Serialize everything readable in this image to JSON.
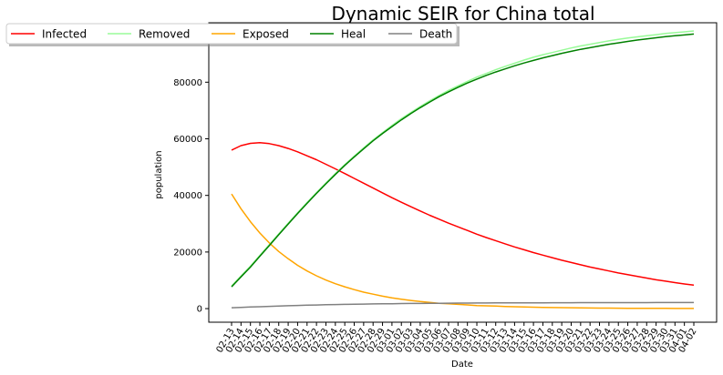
{
  "chart_data": {
    "type": "line",
    "title": "Dynamic SEIR for China total",
    "xlabel": "Date",
    "ylabel": "population",
    "ylim": [
      -4800,
      101000
    ],
    "yticks": [
      0,
      20000,
      40000,
      60000,
      80000
    ],
    "grid": false,
    "legend_position": "top-left",
    "x": [
      "02-13",
      "02-14",
      "02-15",
      "02-16",
      "02-17",
      "02-18",
      "02-19",
      "02-20",
      "02-21",
      "02-22",
      "02-23",
      "02-24",
      "02-25",
      "02-26",
      "02-27",
      "02-28",
      "02-29",
      "03-01",
      "03-02",
      "03-03",
      "03-04",
      "03-05",
      "03-06",
      "03-07",
      "03-08",
      "03-09",
      "03-10",
      "03-11",
      "03-12",
      "03-13",
      "03-14",
      "03-15",
      "03-16",
      "03-17",
      "03-18",
      "03-19",
      "03-20",
      "03-21",
      "03-22",
      "03-23",
      "03-24",
      "03-25",
      "03-26",
      "03-27",
      "03-28",
      "03-29",
      "03-30",
      "03-31",
      "04-01",
      "04-02"
    ],
    "series": [
      {
        "name": "Infected",
        "color": "#ff0000",
        "values": [
          56000,
          57600,
          58400,
          58600,
          58300,
          57600,
          56600,
          55400,
          54000,
          52600,
          51000,
          49400,
          47700,
          46000,
          44300,
          42600,
          40900,
          39200,
          37600,
          36000,
          34500,
          33000,
          31600,
          30200,
          28900,
          27600,
          26300,
          25100,
          24000,
          22900,
          21800,
          20800,
          19800,
          18900,
          18000,
          17100,
          16300,
          15500,
          14700,
          14000,
          13300,
          12600,
          12000,
          11400,
          10800,
          10200,
          9700,
          9200,
          8700,
          8300
        ]
      },
      {
        "name": "Removed",
        "color": "#98fb98",
        "values": [
          8000,
          11500,
          15000,
          18800,
          22600,
          26400,
          30200,
          33900,
          37500,
          41000,
          44400,
          47700,
          50900,
          53900,
          56800,
          59600,
          62200,
          64700,
          67100,
          69300,
          71400,
          73400,
          75300,
          77100,
          78700,
          80300,
          81800,
          83100,
          84400,
          85600,
          86700,
          87800,
          88800,
          89700,
          90500,
          91300,
          92100,
          92800,
          93400,
          94000,
          94600,
          95100,
          95600,
          96000,
          96400,
          96800,
          97200,
          97500,
          97800,
          98100
        ]
      },
      {
        "name": "Exposed",
        "color": "#ffa500",
        "values": [
          40500,
          35300,
          30700,
          26700,
          23200,
          20200,
          17600,
          15300,
          13300,
          11600,
          10100,
          8800,
          7700,
          6700,
          5800,
          5100,
          4400,
          3800,
          3300,
          2900,
          2500,
          2200,
          1900,
          1700,
          1500,
          1300,
          1100,
          1000,
          880,
          770,
          670,
          580,
          510,
          440,
          390,
          340,
          300,
          260,
          230,
          200,
          170,
          150,
          130,
          120,
          100,
          90,
          80,
          70,
          60,
          50
        ]
      },
      {
        "name": "Heal",
        "color": "#008000",
        "values": [
          7700,
          11200,
          14700,
          18500,
          22300,
          26100,
          29900,
          33600,
          37200,
          40700,
          44100,
          47400,
          50600,
          53600,
          56500,
          59300,
          61900,
          64300,
          66700,
          68900,
          71000,
          73000,
          74900,
          76600,
          78200,
          79700,
          81100,
          82400,
          83600,
          84700,
          85800,
          86800,
          87700,
          88600,
          89400,
          90200,
          90900,
          91600,
          92200,
          92800,
          93400,
          93900,
          94400,
          94900,
          95300,
          95700,
          96100,
          96400,
          96700,
          97000
        ]
      },
      {
        "name": "Death",
        "color": "#808080",
        "values": [
          300,
          430,
          560,
          680,
          800,
          910,
          1010,
          1110,
          1200,
          1280,
          1360,
          1430,
          1490,
          1550,
          1600,
          1650,
          1700,
          1740,
          1780,
          1810,
          1840,
          1870,
          1900,
          1920,
          1940,
          1960,
          1980,
          2000,
          2010,
          2020,
          2030,
          2040,
          2050,
          2060,
          2070,
          2080,
          2090,
          2100,
          2100,
          2110,
          2110,
          2120,
          2120,
          2130,
          2130,
          2140,
          2140,
          2140,
          2150,
          2150
        ]
      }
    ]
  }
}
